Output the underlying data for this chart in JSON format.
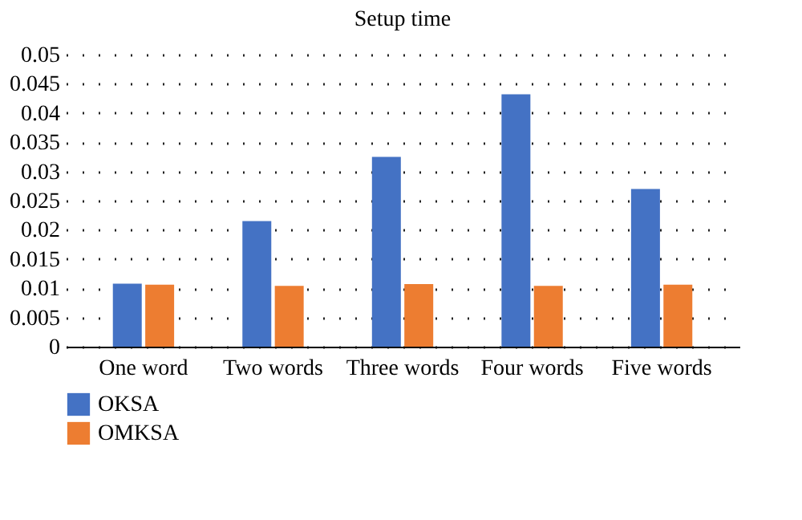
{
  "chart_data": {
    "type": "bar",
    "title": "Setup time",
    "categories": [
      "One word",
      "Two words",
      "Three words",
      "Four words",
      "Five words"
    ],
    "series": [
      {
        "name": "OKSA",
        "color": "#4472c4",
        "values": [
          0.0108,
          0.0215,
          0.0325,
          0.0432,
          0.027
        ]
      },
      {
        "name": "OMKSA",
        "color": "#ed7d31",
        "values": [
          0.0106,
          0.0104,
          0.0107,
          0.0104,
          0.0106
        ]
      }
    ],
    "ylim": [
      0,
      0.05
    ],
    "yticks": [
      0,
      0.005,
      0.01,
      0.015,
      0.02,
      0.025,
      0.03,
      0.035,
      0.04,
      0.045,
      0.05
    ],
    "grid": "y",
    "legend": "bottom left"
  }
}
